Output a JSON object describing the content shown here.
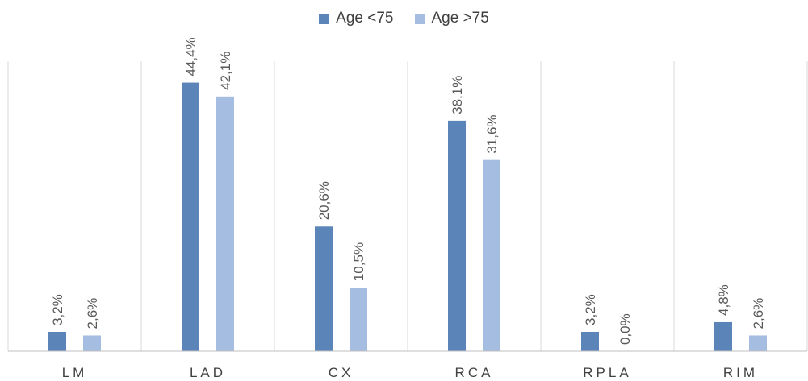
{
  "chart_data": {
    "type": "bar",
    "categories": [
      "LM",
      "LAD",
      "CX",
      "RCA",
      "RPLA",
      "RIM"
    ],
    "series": [
      {
        "name": "Age <75",
        "color": "#5b84b8",
        "values": [
          3.2,
          44.4,
          20.6,
          38.1,
          3.2,
          4.8
        ],
        "labels": [
          "3,2%",
          "44,4%",
          "20,6%",
          "38,1%",
          "3,2%",
          "4,8%"
        ]
      },
      {
        "name": "Age >75",
        "color": "#a4bde0",
        "values": [
          2.6,
          42.1,
          10.5,
          31.6,
          0.0,
          2.6
        ],
        "labels": [
          "2,6%",
          "42,1%",
          "10,5%",
          "31,6%",
          "0,0%",
          "2,6%"
        ]
      }
    ],
    "ylim": [
      0,
      49
    ],
    "grid": "vertical category separators",
    "legend": "top-center"
  }
}
